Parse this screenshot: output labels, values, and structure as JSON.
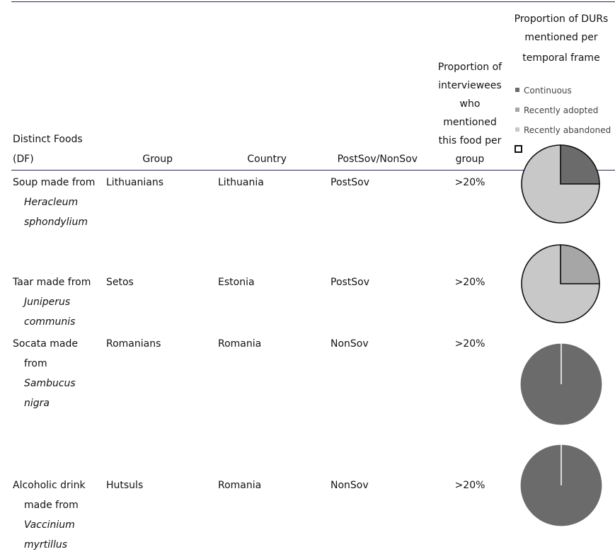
{
  "header": {
    "df_line1": "Distinct Foods",
    "df_line2": "(DF)",
    "group": "Group",
    "country": "Country",
    "postsov": "PostSov/NonSov",
    "proportion_lines": [
      "Proportion of",
      "interviewees",
      "who",
      "mentioned",
      "this food per",
      "group"
    ],
    "dur_lines": [
      "Proportion of DURs",
      "mentioned per",
      "temporal frame"
    ]
  },
  "legend": [
    {
      "label": "Continuous",
      "color": "#6b6b6b"
    },
    {
      "label": "Recently adopted",
      "color": "#a6a6a6"
    },
    {
      "label": "Recently abandoned",
      "color": "#c8c8c8"
    }
  ],
  "rows": [
    {
      "food_lines": [
        {
          "text": "Soup made from",
          "italic": false
        },
        {
          "text": "Heracleum",
          "italic": true
        },
        {
          "text": "sphondylium",
          "italic": true
        }
      ],
      "group": "Lithuanians",
      "country": "Lithuania",
      "sov": "PostSov",
      "proportion": ">20%",
      "pie": {
        "continuous": 0.25,
        "recently_adopted": 0,
        "recently_abandoned": 0.75
      }
    },
    {
      "food_lines": [
        {
          "text": "Taar made from",
          "italic": false
        },
        {
          "text": "Juniperus",
          "italic": true
        },
        {
          "text": "communis",
          "italic": true
        }
      ],
      "group": "Setos",
      "country": "Estonia",
      "sov": "PostSov",
      "proportion": ">20%",
      "pie": {
        "continuous": 0,
        "recently_adopted": 0.25,
        "recently_abandoned": 0.75
      }
    },
    {
      "food_lines": [
        {
          "text": "Socata made",
          "italic": false
        },
        {
          "text": "from",
          "italic": false
        },
        {
          "text": "Sambucus",
          "italic": true
        },
        {
          "text": "nigra",
          "italic": true
        }
      ],
      "group": "Romanians",
      "country": "Romania",
      "sov": "NonSov",
      "proportion": ">20%",
      "pie": {
        "continuous": 1,
        "recently_adopted": 0,
        "recently_abandoned": 0
      }
    },
    {
      "food_lines": [
        {
          "text": "Alcoholic drink",
          "italic": false
        },
        {
          "text": "made from",
          "italic": false
        },
        {
          "text": "Vaccinium",
          "italic": true
        },
        {
          "text": "myrtillus",
          "italic": true
        }
      ],
      "group": "Hutsuls",
      "country": "Romania",
      "sov": "NonSov",
      "proportion": ">20%",
      "pie": {
        "continuous": 1,
        "recently_adopted": 0,
        "recently_abandoned": 0
      }
    }
  ]
}
